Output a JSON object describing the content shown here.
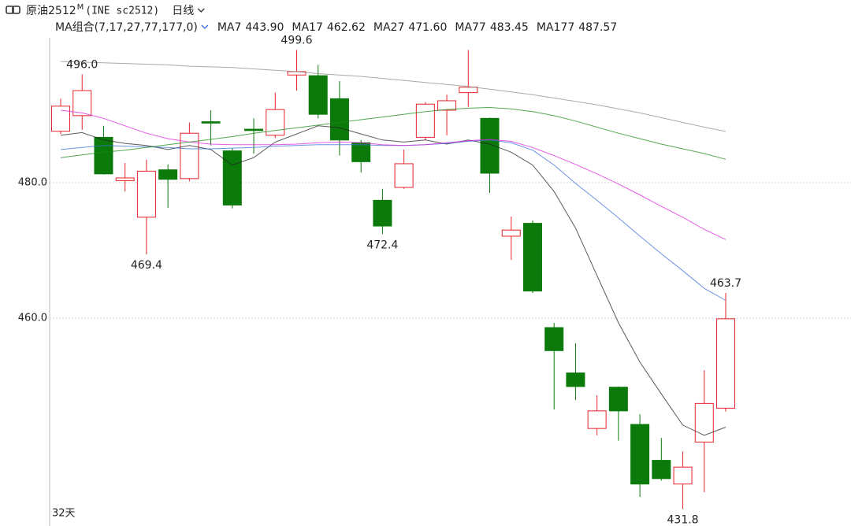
{
  "chart_data": {
    "type": "candlestick",
    "header": {
      "symbol": "原油2512",
      "marker": "M",
      "code": "(INE sc2512)",
      "period": "日线",
      "ma_group": "MA组合(7,17,27,77,177,0)"
    },
    "footer": "32天",
    "ylim": [
      431,
      502
    ],
    "yticks": [
      {
        "value": 460,
        "label": "460.0"
      },
      {
        "value": 480,
        "label": "480.0"
      }
    ],
    "grid": true,
    "up_color": "#e8232b",
    "down_color": "#0b7a0b",
    "open": [
      487.6,
      489.9,
      486.7,
      480.3,
      474.9,
      481.9,
      480.6,
      489.0,
      484.7,
      487.9,
      487.0,
      495.9,
      495.8,
      492.4,
      485.9,
      477.4,
      479.3,
      486.7,
      490.7,
      493.3,
      489.5,
      472.1,
      474.0,
      458.6,
      451.9,
      443.7,
      449.8,
      444.3,
      439.0,
      435.5,
      441.7,
      446.7
    ],
    "high": [
      492.4,
      496.0,
      488.4,
      482.9,
      483.4,
      482.7,
      488.9,
      490.7,
      485.1,
      489.5,
      493.3,
      499.6,
      497.4,
      495.0,
      486.3,
      479.1,
      484.9,
      491.9,
      493.0,
      499.6,
      489.6,
      475.0,
      474.4,
      459.3,
      456.3,
      448.6,
      449.9,
      445.8,
      442.3,
      440.3,
      452.3,
      463.7
    ],
    "low": [
      487.2,
      487.8,
      481.2,
      478.7,
      469.4,
      476.3,
      480.2,
      485.5,
      476.2,
      484.3,
      486.6,
      493.6,
      489.5,
      484.0,
      481.5,
      472.4,
      479.1,
      486.3,
      487.0,
      491.2,
      478.5,
      468.6,
      463.7,
      446.5,
      447.9,
      442.7,
      441.9,
      433.6,
      436.0,
      431.8,
      434.3,
      446.2
    ],
    "close": [
      491.3,
      493.6,
      481.3,
      480.7,
      481.7,
      480.5,
      487.3,
      488.8,
      476.7,
      487.7,
      490.8,
      496.4,
      490.1,
      486.3,
      483.1,
      473.6,
      482.8,
      491.6,
      492.1,
      494.1,
      481.4,
      473.0,
      464.0,
      455.2,
      449.9,
      446.3,
      446.3,
      435.5,
      436.3,
      438.0,
      447.4,
      459.9
    ],
    "annotations": [
      {
        "value": 496.0,
        "label": "496.0",
        "at": "high"
      },
      {
        "value": 469.4,
        "label": "469.4",
        "at": "low"
      },
      {
        "value": 499.6,
        "label": "499.6",
        "at": "high"
      },
      {
        "value": 472.4,
        "label": "472.4",
        "at": "low"
      },
      {
        "value": 463.7,
        "label": "463.7",
        "at": "high"
      },
      {
        "value": 431.8,
        "label": "431.8",
        "at": "low"
      }
    ],
    "series": [
      {
        "name": "MA7",
        "color": "#222222",
        "current": "443.90",
        "values": [
          487.0,
          487.4,
          486.3,
          485.8,
          485.5,
          484.9,
          485.5,
          484.9,
          482.6,
          483.7,
          486.0,
          487.2,
          488.4,
          488.1,
          487.2,
          486.3,
          486.0,
          486.3,
          485.7,
          486.3,
          485.7,
          484.5,
          482.6,
          478.7,
          473.3,
          466.3,
          459.3,
          453.5,
          448.8,
          444.2,
          442.7,
          443.9
        ]
      },
      {
        "name": "MA17",
        "color": "#3a6fd8",
        "current": "462.62",
        "values": [
          484.9,
          485.2,
          485.5,
          485.4,
          485.3,
          485.2,
          485.0,
          485.0,
          485.1,
          485.2,
          485.4,
          485.5,
          485.6,
          485.6,
          485.6,
          485.5,
          485.5,
          485.6,
          485.8,
          486.1,
          486.3,
          485.9,
          484.8,
          482.6,
          479.9,
          477.4,
          474.8,
          472.1,
          469.5,
          467.0,
          464.4,
          462.62
        ]
      },
      {
        "name": "MA27",
        "color": "#e020e0",
        "current": "471.60",
        "values": [
          490.7,
          490.3,
          489.5,
          488.4,
          487.3,
          486.5,
          486.0,
          485.7,
          485.6,
          485.6,
          485.6,
          485.7,
          485.9,
          486.0,
          485.9,
          485.6,
          485.5,
          485.6,
          485.9,
          486.2,
          486.4,
          486.1,
          485.2,
          484.0,
          482.7,
          481.3,
          479.8,
          478.2,
          476.5,
          474.9,
          473.1,
          471.6
        ]
      },
      {
        "name": "MA77",
        "color": "#1a8a1a",
        "current": "483.45",
        "values": [
          483.7,
          484.1,
          484.5,
          484.8,
          485.2,
          485.6,
          486.0,
          486.4,
          486.8,
          487.3,
          487.7,
          488.1,
          488.5,
          488.9,
          489.3,
          489.7,
          490.1,
          490.5,
          490.8,
          491.0,
          491.1,
          490.9,
          490.5,
          489.9,
          489.1,
          488.2,
          487.3,
          486.5,
          485.7,
          485.0,
          484.3,
          483.45
        ]
      },
      {
        "name": "MA177",
        "color": "#8c8c8c",
        "current": "487.57",
        "values": [
          497.9,
          497.8,
          497.7,
          497.6,
          497.5,
          497.4,
          497.2,
          497.1,
          497.0,
          496.8,
          496.6,
          496.4,
          496.1,
          495.9,
          495.7,
          495.4,
          495.1,
          494.8,
          494.5,
          494.2,
          493.8,
          493.4,
          493.0,
          492.5,
          492.0,
          491.5,
          490.9,
          490.3,
          489.6,
          488.9,
          488.2,
          487.57
        ]
      }
    ]
  }
}
